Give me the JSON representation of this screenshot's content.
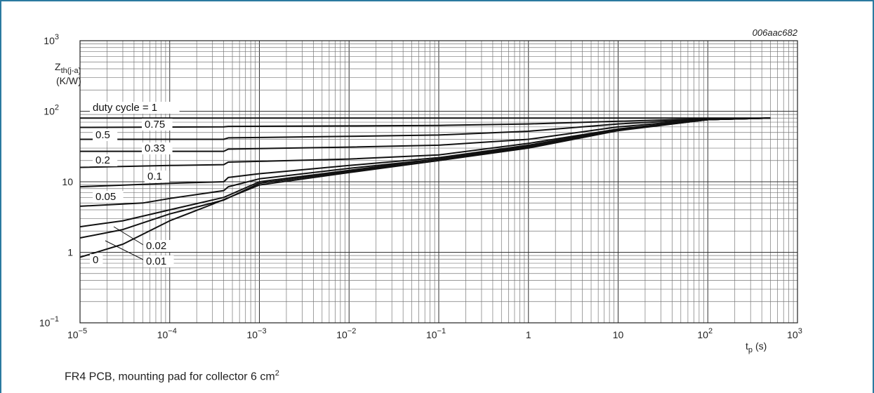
{
  "figure": {
    "code": "006aac682",
    "caption_prefix": "FR4 PCB, mounting pad for collector 6 cm",
    "caption_sup": "2"
  },
  "chart_data": {
    "type": "line",
    "xscale": "log",
    "yscale": "log",
    "xlim": [
      1e-05,
      1000
    ],
    "ylim": [
      0.1,
      1000
    ],
    "grid": true,
    "x_ticks": [
      {
        "base": "10",
        "exp": "−5"
      },
      {
        "base": "10",
        "exp": "−4"
      },
      {
        "base": "10",
        "exp": "−3"
      },
      {
        "base": "10",
        "exp": "−2"
      },
      {
        "base": "10",
        "exp": "−1"
      },
      {
        "base": "1",
        "exp": ""
      },
      {
        "base": "10",
        "exp": ""
      },
      {
        "base": "10",
        "exp": "2"
      },
      {
        "base": "10",
        "exp": "3"
      }
    ],
    "y_ticks": [
      {
        "base": "10",
        "exp": "−1"
      },
      {
        "base": "1",
        "exp": ""
      },
      {
        "base": "10",
        "exp": ""
      },
      {
        "base": "10",
        "exp": "2"
      },
      {
        "base": "10",
        "exp": "3"
      }
    ],
    "ylabel": {
      "main": "Z",
      "sub": "th(j-a)",
      "unit": "(K/W)"
    },
    "xlabel": {
      "main": "t",
      "sub": "p",
      "unit": "(s)"
    },
    "series": [
      {
        "name": "duty cycle = 1",
        "x": [
          1e-05,
          500
        ],
        "y": [
          80,
          80
        ]
      },
      {
        "name": "0.75",
        "x": [
          1e-05,
          0.0004,
          0.00045,
          0.01,
          0.1,
          1,
          10,
          100,
          500
        ],
        "y": [
          59,
          60,
          61,
          62,
          63,
          66,
          72,
          78,
          80
        ]
      },
      {
        "name": "0.5",
        "x": [
          1e-05,
          0.0004,
          0.00045,
          0.01,
          0.1,
          1,
          10,
          100,
          500
        ],
        "y": [
          40,
          40,
          42,
          44,
          46,
          52,
          66,
          77,
          80
        ]
      },
      {
        "name": "0.33",
        "x": [
          1e-05,
          0.0004,
          0.00045,
          0.01,
          0.1,
          1,
          10,
          100,
          500
        ],
        "y": [
          27,
          27,
          29,
          31,
          33,
          40,
          60,
          77,
          80
        ]
      },
      {
        "name": "0.2",
        "x": [
          1e-05,
          0.0001,
          0.0004,
          0.00045,
          0.001,
          0.01,
          0.1,
          1,
          10,
          100,
          500
        ],
        "y": [
          16,
          17,
          17.5,
          19,
          19.5,
          21,
          24,
          35,
          56,
          76,
          80
        ]
      },
      {
        "name": "0.1",
        "x": [
          1e-05,
          0.0001,
          0.0004,
          0.00045,
          0.001,
          0.01,
          0.1,
          1,
          10,
          100,
          500
        ],
        "y": [
          8.5,
          9.5,
          10,
          11.5,
          13,
          17,
          22,
          33,
          55,
          76,
          80
        ]
      },
      {
        "name": "0.05",
        "x": [
          1e-05,
          5e-05,
          0.0001,
          0.0004,
          0.00045,
          0.001,
          0.01,
          0.1,
          1,
          10,
          100,
          500
        ],
        "y": [
          4.5,
          5,
          5.8,
          7.5,
          8.5,
          11,
          15.5,
          21,
          32,
          55,
          76,
          80
        ]
      },
      {
        "name": "0.02",
        "x": [
          1e-05,
          3e-05,
          0.0001,
          0.0004,
          0.001,
          0.01,
          0.1,
          1,
          10,
          100,
          500
        ],
        "y": [
          2.3,
          2.8,
          4,
          6,
          10,
          14.5,
          21,
          31,
          54,
          76,
          80
        ]
      },
      {
        "name": "0.01",
        "x": [
          1e-05,
          3e-05,
          0.0001,
          0.0004,
          0.001,
          0.01,
          0.1,
          1,
          10,
          100,
          500
        ],
        "y": [
          1.6,
          2.1,
          3.5,
          5.5,
          9.5,
          14,
          20,
          31,
          54,
          76,
          80
        ]
      },
      {
        "name": "0",
        "x": [
          1e-05,
          3e-05,
          0.0001,
          0.0003,
          0.001,
          0.01,
          0.1,
          1,
          10,
          100,
          500
        ],
        "y": [
          0.85,
          1.3,
          2.8,
          4.8,
          9,
          13.5,
          20,
          30,
          53,
          76,
          80
        ]
      }
    ]
  }
}
